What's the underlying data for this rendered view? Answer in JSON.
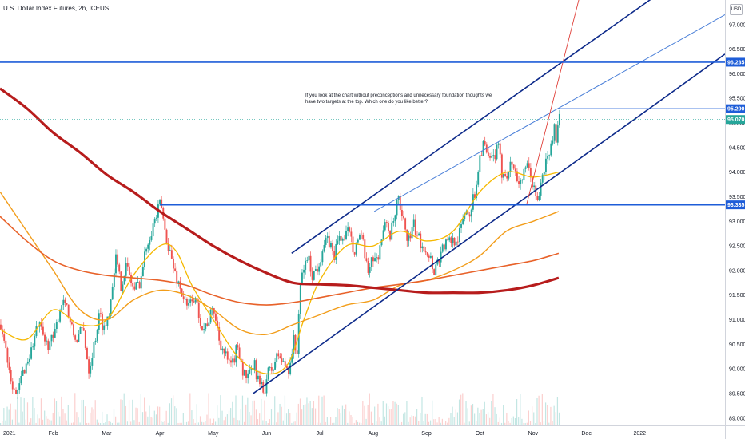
{
  "header": {
    "title": "U.S. Dollar Index Futures, 2h, ICEUS",
    "currency": "USD"
  },
  "note": {
    "text": "If you look at the chart without preconceptions and unnecessary foundation thoughts we have two targets at the top. Which one do you like better?"
  },
  "colors": {
    "background": "#ffffff",
    "up_candle": "#26a69a",
    "down_candle": "#ef5350",
    "channel": "#0d2a8a",
    "horizontal_levels": "#1e5dd8",
    "trendline_light": "#4a7fd8",
    "trendline_red": "#e0403a",
    "ma_fast": "#f5b800",
    "ma_mid": "#f29d1a",
    "ma_slow": "#e8622a",
    "ma_200": "#b71c1c",
    "price_line": "#26a69a"
  },
  "chart_data": {
    "type": "candlestick",
    "title": "U.S. Dollar Index Futures, 2h, ICEUS",
    "x_axis": {
      "tick_labels": [
        "2021",
        "Feb",
        "Mar",
        "Apr",
        "May",
        "Jun",
        "Jul",
        "Aug",
        "Sep",
        "Oct",
        "Nov",
        "Dec",
        "2022"
      ],
      "tick_months": [
        0,
        1,
        2,
        3,
        4,
        5,
        6,
        7,
        8,
        9,
        10,
        11,
        12
      ],
      "range_months": [
        0,
        13.6
      ]
    },
    "y_axis": {
      "ylim": [
        88.85,
        97.5
      ],
      "ticks": [
        89.0,
        89.5,
        90.0,
        90.5,
        91.0,
        91.5,
        92.0,
        92.5,
        93.0,
        93.5,
        94.0,
        94.5,
        95.0,
        95.5,
        96.0,
        96.5,
        97.0
      ],
      "tick_labels": [
        "89.000",
        "89.500",
        "90.000",
        "90.500",
        "91.000",
        "91.500",
        "92.000",
        "92.500",
        "93.000",
        "93.500",
        "94.000",
        "94.500",
        "95.000",
        "95.500",
        "96.000",
        "96.500",
        "97.000"
      ],
      "position": "right"
    },
    "price_path": [
      [
        0.0,
        90.9
      ],
      [
        0.08,
        90.5
      ],
      [
        0.18,
        89.9
      ],
      [
        0.3,
        89.4
      ],
      [
        0.4,
        89.9
      ],
      [
        0.55,
        90.3
      ],
      [
        0.7,
        90.9
      ],
      [
        0.85,
        90.5
      ],
      [
        1.0,
        90.6
      ],
      [
        1.1,
        91.2
      ],
      [
        1.2,
        91.5
      ],
      [
        1.3,
        90.9
      ],
      [
        1.4,
        90.6
      ],
      [
        1.55,
        90.8
      ],
      [
        1.65,
        90.0
      ],
      [
        1.75,
        90.5
      ],
      [
        1.85,
        91.1
      ],
      [
        1.95,
        90.8
      ],
      [
        2.05,
        91.3
      ],
      [
        2.15,
        92.3
      ],
      [
        2.25,
        91.7
      ],
      [
        2.35,
        92.1
      ],
      [
        2.5,
        91.6
      ],
      [
        2.62,
        91.8
      ],
      [
        2.75,
        92.6
      ],
      [
        2.85,
        92.9
      ],
      [
        2.95,
        93.2
      ],
      [
        3.0,
        93.4
      ],
      [
        3.08,
        92.8
      ],
      [
        3.15,
        92.5
      ],
      [
        3.25,
        92.0
      ],
      [
        3.35,
        91.7
      ],
      [
        3.5,
        91.2
      ],
      [
        3.6,
        91.5
      ],
      [
        3.7,
        91.2
      ],
      [
        3.8,
        90.8
      ],
      [
        3.9,
        91.0
      ],
      [
        4.0,
        91.2
      ],
      [
        4.1,
        90.6
      ],
      [
        4.2,
        90.3
      ],
      [
        4.32,
        90.0
      ],
      [
        4.45,
        90.5
      ],
      [
        4.55,
        89.9
      ],
      [
        4.65,
        89.8
      ],
      [
        4.75,
        90.1
      ],
      [
        4.85,
        89.7
      ],
      [
        4.93,
        89.5
      ],
      [
        5.0,
        89.9
      ],
      [
        5.1,
        90.0
      ],
      [
        5.2,
        90.3
      ],
      [
        5.3,
        90.1
      ],
      [
        5.4,
        90.0
      ],
      [
        5.5,
        90.6
      ],
      [
        5.55,
        90.2
      ],
      [
        5.6,
        91.4
      ],
      [
        5.65,
        91.9
      ],
      [
        5.75,
        92.3
      ],
      [
        5.85,
        91.9
      ],
      [
        5.95,
        92.1
      ],
      [
        6.05,
        92.5
      ],
      [
        6.15,
        92.6
      ],
      [
        6.25,
        92.3
      ],
      [
        6.35,
        92.7
      ],
      [
        6.45,
        92.6
      ],
      [
        6.55,
        92.9
      ],
      [
        6.62,
        92.4
      ],
      [
        6.72,
        92.7
      ],
      [
        6.8,
        92.5
      ],
      [
        6.88,
        91.9
      ],
      [
        6.95,
        92.3
      ],
      [
        7.05,
        92.2
      ],
      [
        7.15,
        92.7
      ],
      [
        7.25,
        93.0
      ],
      [
        7.3,
        92.7
      ],
      [
        7.4,
        93.1
      ],
      [
        7.45,
        93.5
      ],
      [
        7.5,
        93.1
      ],
      [
        7.58,
        92.9
      ],
      [
        7.65,
        92.6
      ],
      [
        7.75,
        92.9
      ],
      [
        7.85,
        92.6
      ],
      [
        7.95,
        92.5
      ],
      [
        8.05,
        92.3
      ],
      [
        8.12,
        92.0
      ],
      [
        8.2,
        92.2
      ],
      [
        8.3,
        92.5
      ],
      [
        8.45,
        92.6
      ],
      [
        8.6,
        92.7
      ],
      [
        8.7,
        93.2
      ],
      [
        8.8,
        93.2
      ],
      [
        8.9,
        93.6
      ],
      [
        8.98,
        94.3
      ],
      [
        9.05,
        94.6
      ],
      [
        9.15,
        94.2
      ],
      [
        9.25,
        94.3
      ],
      [
        9.33,
        94.5
      ],
      [
        9.4,
        94.0
      ],
      [
        9.5,
        94.0
      ],
      [
        9.6,
        94.2
      ],
      [
        9.7,
        93.8
      ],
      [
        9.8,
        93.9
      ],
      [
        9.88,
        94.1
      ],
      [
        9.95,
        93.9
      ],
      [
        10.05,
        93.4
      ],
      [
        10.15,
        93.8
      ],
      [
        10.22,
        94.2
      ],
      [
        10.3,
        94.4
      ],
      [
        10.38,
        94.9
      ],
      [
        10.42,
        94.7
      ],
      [
        10.48,
        95.07
      ]
    ],
    "moving_averages": [
      {
        "id": "ma_fast",
        "points": [
          [
            0.0,
            90.8
          ],
          [
            0.5,
            90.6
          ],
          [
            1.0,
            91.2
          ],
          [
            1.5,
            90.9
          ],
          [
            2.0,
            91.0
          ],
          [
            2.5,
            91.9
          ],
          [
            3.0,
            92.5
          ],
          [
            3.3,
            92.4
          ],
          [
            3.6,
            91.7
          ],
          [
            4.0,
            91.0
          ],
          [
            4.5,
            90.2
          ],
          [
            5.0,
            89.9
          ],
          [
            5.4,
            90.1
          ],
          [
            5.7,
            91.0
          ],
          [
            6.0,
            91.8
          ],
          [
            6.5,
            92.5
          ],
          [
            7.0,
            92.5
          ],
          [
            7.5,
            92.8
          ],
          [
            8.0,
            92.6
          ],
          [
            8.5,
            92.8
          ],
          [
            9.0,
            93.6
          ],
          [
            9.5,
            94.0
          ],
          [
            10.0,
            93.9
          ],
          [
            10.48,
            94.0
          ]
        ]
      },
      {
        "id": "ma_mid",
        "points": [
          [
            0.0,
            93.6
          ],
          [
            0.5,
            92.8
          ],
          [
            1.0,
            92.0
          ],
          [
            1.5,
            91.2
          ],
          [
            2.0,
            91.0
          ],
          [
            2.5,
            91.4
          ],
          [
            3.0,
            91.6
          ],
          [
            3.5,
            91.5
          ],
          [
            4.0,
            91.2
          ],
          [
            4.5,
            90.8
          ],
          [
            5.0,
            90.7
          ],
          [
            5.5,
            90.9
          ],
          [
            6.0,
            91.1
          ],
          [
            6.5,
            91.3
          ],
          [
            7.0,
            91.4
          ],
          [
            7.5,
            91.7
          ],
          [
            8.0,
            91.8
          ],
          [
            8.5,
            92.0
          ],
          [
            9.0,
            92.3
          ],
          [
            9.5,
            92.8
          ],
          [
            10.0,
            93.0
          ],
          [
            10.48,
            93.2
          ]
        ]
      },
      {
        "id": "ma_slow",
        "points": [
          [
            0.0,
            93.1
          ],
          [
            0.5,
            92.6
          ],
          [
            1.0,
            92.2
          ],
          [
            1.5,
            92.0
          ],
          [
            2.0,
            91.9
          ],
          [
            2.5,
            91.85
          ],
          [
            3.0,
            91.8
          ],
          [
            3.5,
            91.7
          ],
          [
            4.0,
            91.5
          ],
          [
            4.5,
            91.35
          ],
          [
            5.0,
            91.3
          ],
          [
            5.5,
            91.35
          ],
          [
            6.0,
            91.45
          ],
          [
            6.5,
            91.55
          ],
          [
            7.0,
            91.65
          ],
          [
            7.5,
            91.72
          ],
          [
            8.0,
            91.8
          ],
          [
            8.5,
            91.9
          ],
          [
            9.0,
            92.0
          ],
          [
            9.5,
            92.1
          ],
          [
            10.0,
            92.2
          ],
          [
            10.48,
            92.35
          ]
        ]
      },
      {
        "id": "ma_200",
        "points": [
          [
            0.0,
            95.7
          ],
          [
            0.5,
            95.3
          ],
          [
            1.0,
            94.8
          ],
          [
            1.5,
            94.4
          ],
          [
            2.0,
            93.95
          ],
          [
            2.5,
            93.6
          ],
          [
            3.0,
            93.2
          ],
          [
            3.5,
            92.85
          ],
          [
            4.0,
            92.5
          ],
          [
            4.5,
            92.2
          ],
          [
            5.0,
            91.95
          ],
          [
            5.5,
            91.75
          ],
          [
            6.0,
            91.72
          ],
          [
            6.5,
            91.7
          ],
          [
            7.0,
            91.65
          ],
          [
            7.5,
            91.6
          ],
          [
            8.0,
            91.55
          ],
          [
            8.5,
            91.55
          ],
          [
            9.0,
            91.55
          ],
          [
            9.5,
            91.6
          ],
          [
            10.0,
            91.7
          ],
          [
            10.48,
            91.85
          ]
        ]
      }
    ],
    "drawings": {
      "channel_upper": [
        [
          5.47,
          92.35
        ],
        [
          12.32,
          97.6
        ]
      ],
      "channel_lower": [
        [
          4.75,
          89.5
        ],
        [
          13.6,
          96.4
        ]
      ],
      "trendline_light": [
        [
          7.02,
          93.2
        ],
        [
          13.6,
          97.2
        ]
      ],
      "trendline_red": [
        [
          9.88,
          93.35
        ],
        [
          10.88,
          97.6
        ]
      ],
      "hline_top": {
        "value": 96.235,
        "x_start": 0.0
      },
      "hline_mid": {
        "value": 95.29,
        "x_start": 10.48
      },
      "hline_low": {
        "value": 93.335,
        "x_start": 3.0
      }
    },
    "price_labels": [
      {
        "text": "96.235",
        "value": 96.235,
        "color": "#1e5dd8"
      },
      {
        "text": "95.290",
        "value": 95.29,
        "color": "#1e5dd8"
      },
      {
        "text": "95.070",
        "value": 95.07,
        "color": "#26a69a"
      },
      {
        "text": "93.335",
        "value": 93.335,
        "color": "#1e5dd8"
      }
    ],
    "current_price": 95.07,
    "grid": false,
    "legend": "none"
  }
}
